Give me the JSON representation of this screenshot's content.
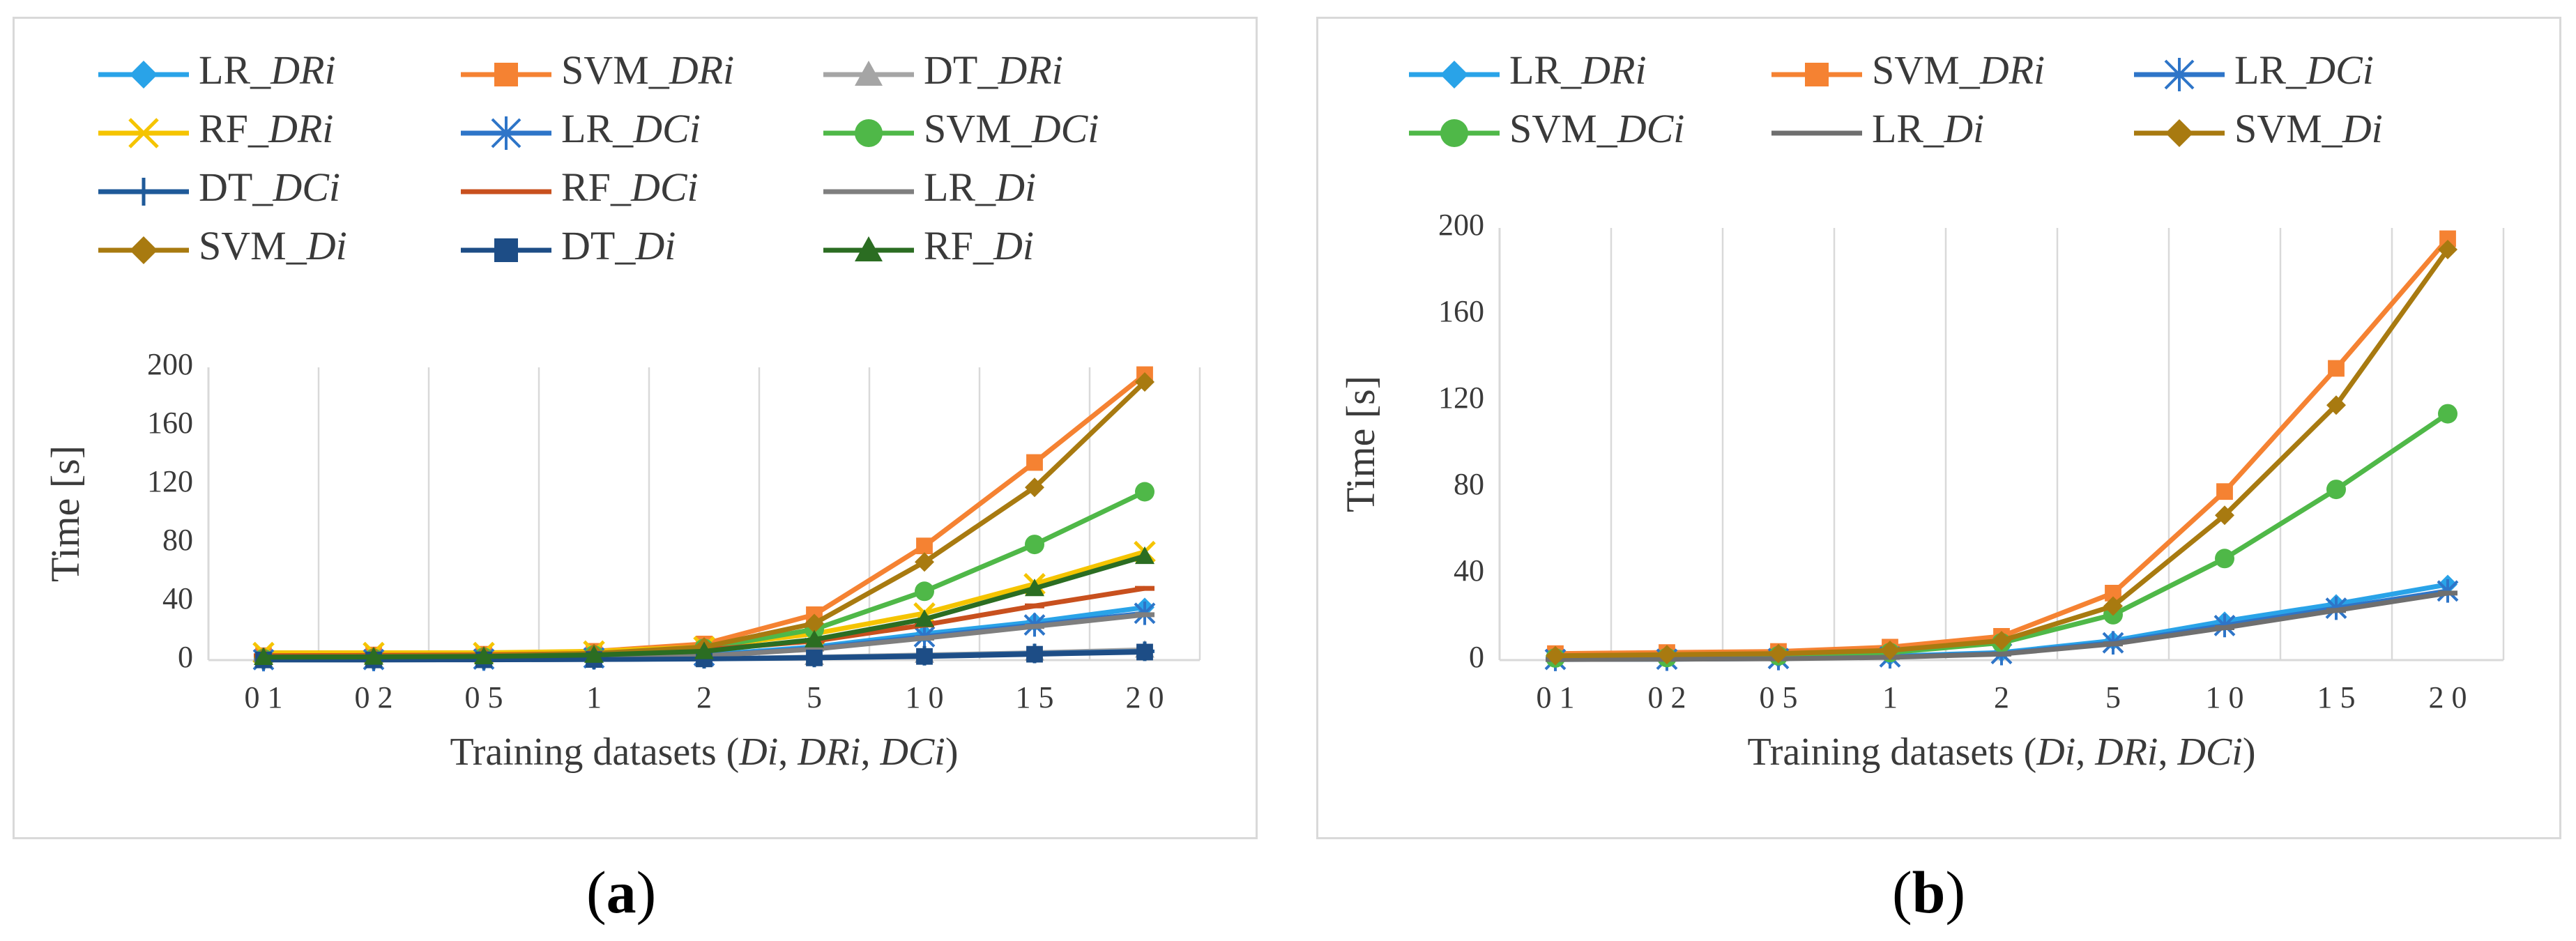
{
  "figure": {
    "caption_a": {
      "open": "(",
      "letter": "a",
      "close": ")"
    },
    "caption_b": {
      "open": "(",
      "letter": "b",
      "close": ")"
    }
  },
  "chart_data": [
    {
      "id": "a",
      "type": "line",
      "title": "",
      "xlabel_parts": [
        "Training datasets (",
        "Di",
        ", ",
        "DRi",
        ", ",
        "DCi",
        ")"
      ],
      "ylabel": "Time [s]",
      "categories": [
        "0 1",
        "0 2",
        "0 5",
        "1",
        "2",
        "5",
        "1 0",
        "1 5",
        "2 0"
      ],
      "yticks": [
        "0",
        "40",
        "80",
        "120",
        "160",
        "200"
      ],
      "ylim": [
        0,
        200
      ],
      "grid": "vertical",
      "legend": "top",
      "series": [
        {
          "name": "LR_",
          "suffix": "DRi",
          "color": "#29a3e8",
          "marker": "diamond",
          "values": [
            0.5,
            0.6,
            0.9,
            1.8,
            3.5,
            9,
            18,
            26,
            36
          ]
        },
        {
          "name": "SVM_",
          "suffix": "DRi",
          "color": "#f58232",
          "marker": "square",
          "values": [
            3,
            3.5,
            4,
            6,
            11,
            31,
            78,
            135,
            195
          ]
        },
        {
          "name": "DT_",
          "suffix": "DRi",
          "color": "#a5a5a5",
          "marker": "triangle",
          "values": [
            0.2,
            0.2,
            0.3,
            0.5,
            1,
            2,
            3.5,
            5,
            7
          ]
        },
        {
          "name": "RF_",
          "suffix": "DRi",
          "color": "#f5c400",
          "marker": "x",
          "values": [
            5,
            5,
            5,
            6,
            9,
            18,
            32,
            52,
            74
          ]
        },
        {
          "name": "LR_",
          "suffix": "DCi",
          "color": "#2e75c8",
          "marker": "star",
          "values": [
            0.3,
            0.4,
            0.7,
            1.5,
            3,
            8,
            16,
            24,
            32
          ]
        },
        {
          "name": "SVM_",
          "suffix": "DCi",
          "color": "#4fb848",
          "marker": "circle",
          "values": [
            1,
            1.2,
            2,
            3.5,
            8,
            21,
            47,
            79,
            115
          ]
        },
        {
          "name": "DT_",
          "suffix": "DCi",
          "color": "#1f5a99",
          "marker": "plus",
          "values": [
            0.2,
            0.2,
            0.3,
            0.5,
            0.9,
            1.8,
            3,
            4.5,
            6
          ]
        },
        {
          "name": "RF_",
          "suffix": "DCi",
          "color": "#c8501e",
          "marker": "dash",
          "values": [
            3,
            3.2,
            3.5,
            4.5,
            7,
            13,
            24,
            37,
            49
          ]
        },
        {
          "name": "LR_",
          "suffix": "Di",
          "color": "#7f7f7f",
          "marker": "dash",
          "values": [
            0.3,
            0.4,
            0.6,
            1.3,
            2.8,
            7.5,
            15,
            23,
            31
          ]
        },
        {
          "name": "SVM_",
          "suffix": "Di",
          "color": "#a87a10",
          "marker": "diamond",
          "values": [
            2,
            2.5,
            3,
            4.5,
            9,
            25,
            67,
            118,
            190
          ]
        },
        {
          "name": "DT_",
          "suffix": "Di",
          "color": "#1d4d86",
          "marker": "square",
          "values": [
            0.1,
            0.1,
            0.2,
            0.4,
            0.8,
            1.5,
            2.5,
            4,
            5.5
          ]
        },
        {
          "name": "RF_",
          "suffix": "Di",
          "color": "#2b6d22",
          "marker": "triangle",
          "values": [
            2,
            2.2,
            2.5,
            3.5,
            6,
            14,
            28,
            49,
            71
          ]
        }
      ]
    },
    {
      "id": "b",
      "type": "line",
      "title": "",
      "xlabel_parts": [
        "Training datasets (",
        "Di",
        ", ",
        "DRi",
        ", ",
        "DCi",
        ")"
      ],
      "ylabel": "Time [s]",
      "categories": [
        "0 1",
        "0 2",
        "0 5",
        "1",
        "2",
        "5",
        "1 0",
        "1 5",
        "2 0"
      ],
      "yticks": [
        "0",
        "40",
        "80",
        "120",
        "160",
        "200"
      ],
      "ylim": [
        0,
        200
      ],
      "grid": "vertical",
      "legend": "top",
      "series": [
        {
          "name": "LR_",
          "suffix": "DRi",
          "color": "#29a3e8",
          "marker": "diamond",
          "values": [
            0.5,
            0.6,
            0.9,
            1.8,
            3.5,
            9,
            18,
            26,
            35
          ]
        },
        {
          "name": "SVM_",
          "suffix": "DRi",
          "color": "#f58232",
          "marker": "square",
          "values": [
            3,
            3.5,
            4,
            6,
            11,
            31,
            78,
            135,
            195
          ]
        },
        {
          "name": "LR_",
          "suffix": "DCi",
          "color": "#2e75c8",
          "marker": "star",
          "values": [
            0.3,
            0.4,
            0.7,
            1.5,
            3,
            8,
            16,
            24,
            32
          ]
        },
        {
          "name": "SVM_",
          "suffix": "DCi",
          "color": "#4fb848",
          "marker": "circle",
          "values": [
            1,
            1.2,
            2,
            3.5,
            8,
            21,
            47,
            79,
            114
          ]
        },
        {
          "name": "LR_",
          "suffix": "Di",
          "color": "#6f6f6f",
          "marker": "dash",
          "values": [
            0.3,
            0.4,
            0.6,
            1.3,
            2.8,
            7.5,
            15,
            23,
            31
          ]
        },
        {
          "name": "SVM_",
          "suffix": "Di",
          "color": "#a87a10",
          "marker": "diamond",
          "values": [
            2,
            2.5,
            3,
            4.5,
            9,
            25,
            67,
            118,
            190
          ]
        }
      ]
    }
  ]
}
